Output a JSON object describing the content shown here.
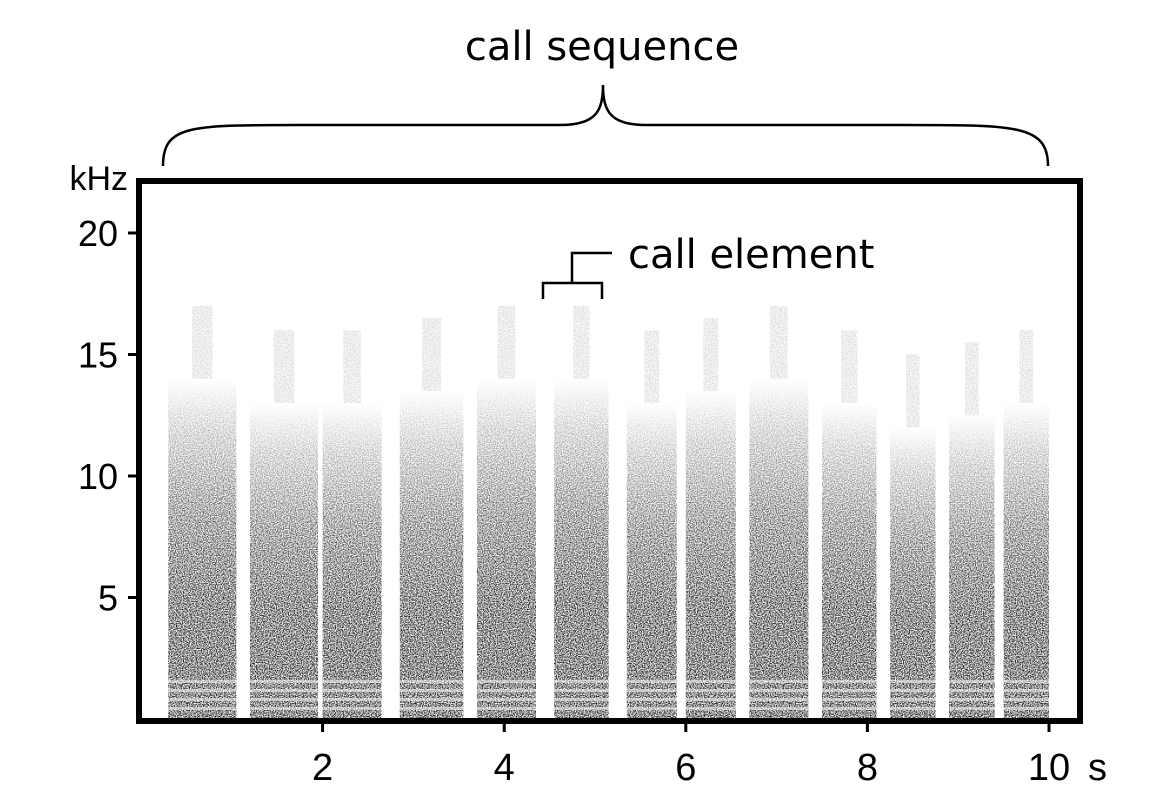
{
  "chart_data": {
    "type": "spectrogram",
    "y_unit_label": "kHz",
    "x_unit_label": "s",
    "xlim": [
      0,
      10
    ],
    "ylim": [
      0,
      22
    ],
    "x_ticks": [
      {
        "value": 2,
        "label": "2"
      },
      {
        "value": 4,
        "label": "4"
      },
      {
        "value": 6,
        "label": "6"
      },
      {
        "value": 8,
        "label": "8"
      },
      {
        "value": 10,
        "label": "10"
      }
    ],
    "y_ticks": [
      {
        "value": 5,
        "label": "5"
      },
      {
        "value": 10,
        "label": "10"
      },
      {
        "value": 15,
        "label": "15"
      },
      {
        "value": 20,
        "label": "20"
      }
    ],
    "call_elements": [
      {
        "start": 0.3,
        "end": 1.05,
        "top_khz": 14
      },
      {
        "start": 1.2,
        "end": 1.95,
        "top_khz": 13
      },
      {
        "start": 2.0,
        "end": 2.65,
        "top_khz": 13
      },
      {
        "start": 2.85,
        "end": 3.55,
        "top_khz": 13.5
      },
      {
        "start": 3.7,
        "end": 4.35,
        "top_khz": 14
      },
      {
        "start": 4.55,
        "end": 5.15,
        "top_khz": 14
      },
      {
        "start": 5.35,
        "end": 5.9,
        "top_khz": 13
      },
      {
        "start": 6.0,
        "end": 6.55,
        "top_khz": 13.5
      },
      {
        "start": 6.7,
        "end": 7.35,
        "top_khz": 14
      },
      {
        "start": 7.5,
        "end": 8.1,
        "top_khz": 13
      },
      {
        "start": 8.25,
        "end": 8.75,
        "top_khz": 12
      },
      {
        "start": 8.9,
        "end": 9.4,
        "top_khz": 12.5
      },
      {
        "start": 9.5,
        "end": 10.0,
        "top_khz": 13
      }
    ],
    "annotations": {
      "sequence_label": "call sequence",
      "element_label": "call element"
    }
  }
}
